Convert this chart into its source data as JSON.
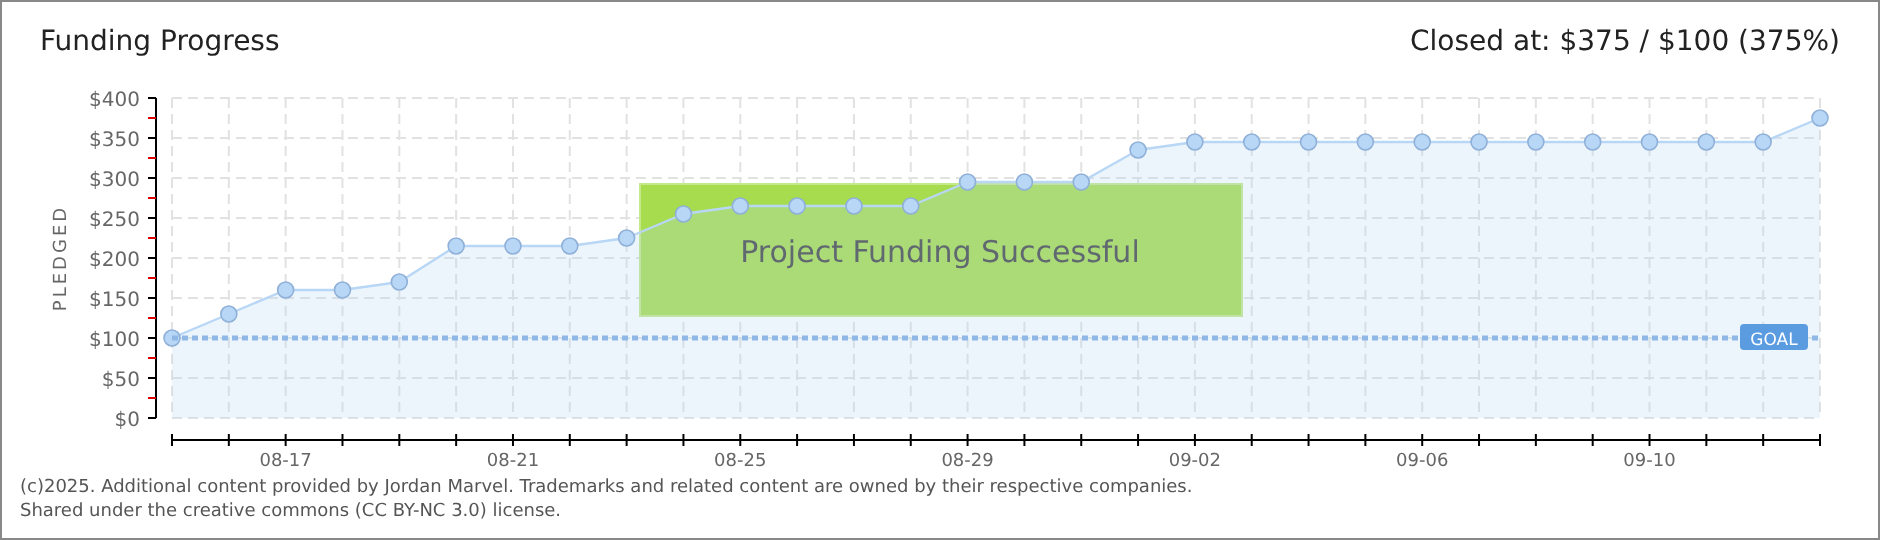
{
  "chart_data": {
    "type": "area",
    "title": "Funding Progress",
    "subtitle": "Closed at: $375 / $100 (375%)",
    "ylabel": "PLEDGED",
    "x": [
      "--08-15",
      "--08-16",
      "--08-17",
      "--08-18",
      "--08-19",
      "--08-20",
      "--08-21",
      "--08-22",
      "--08-23",
      "--08-24",
      "--08-25",
      "--08-26",
      "--08-27",
      "--08-28",
      "--08-29",
      "--08-30",
      "--08-31",
      "--09-01",
      "--09-02",
      "--09-03",
      "--09-04",
      "--09-05",
      "--09-06",
      "--09-07",
      "--09-08",
      "--09-09",
      "--09-10",
      "--09-11",
      "--09-12",
      "--09-13"
    ],
    "series": [
      {
        "color": "#b8d6f5",
        "values": [
          100,
          130,
          160,
          160,
          170,
          215,
          215,
          215,
          225,
          255,
          265,
          265,
          265,
          265,
          295,
          295,
          295,
          335,
          345,
          345,
          345,
          345,
          345,
          345,
          345,
          345,
          345,
          345,
          345,
          375
        ]
      }
    ],
    "xlim": [
      "--08-15",
      "--09-13"
    ],
    "xticks": [
      {
        "value": "--08-15",
        "label": null
      },
      {
        "value": "--08-16",
        "label": null
      },
      {
        "value": "--08-17",
        "label": "08-17"
      },
      {
        "value": "--08-18",
        "label": null
      },
      {
        "value": "--08-19",
        "label": null
      },
      {
        "value": "--08-20",
        "label": null
      },
      {
        "value": "--08-21",
        "label": "08-21"
      },
      {
        "value": "--08-22",
        "label": null
      },
      {
        "value": "--08-23",
        "label": null
      },
      {
        "value": "--08-24",
        "label": null
      },
      {
        "value": "--08-25",
        "label": "08-25"
      },
      {
        "value": "--08-26",
        "label": null
      },
      {
        "value": "--08-27",
        "label": null
      },
      {
        "value": "--08-28",
        "label": null
      },
      {
        "value": "--08-29",
        "label": "08-29"
      },
      {
        "value": "--08-30",
        "label": null
      },
      {
        "value": "--08-31",
        "label": null
      },
      {
        "value": "--09-01",
        "label": null
      },
      {
        "value": "--09-02",
        "label": "09-02"
      },
      {
        "value": "--09-03",
        "label": null
      },
      {
        "value": "--09-04",
        "label": null
      },
      {
        "value": "--09-05",
        "label": null
      },
      {
        "value": "--09-06",
        "label": "09-06"
      },
      {
        "value": "--09-07",
        "label": null
      },
      {
        "value": "--09-08",
        "label": null
      },
      {
        "value": "--09-09",
        "label": null
      },
      {
        "value": "--09-10",
        "label": "09-10"
      },
      {
        "value": "--09-11",
        "label": null
      },
      {
        "value": "--09-12",
        "label": null
      },
      {
        "value": "--09-13",
        "label": null
      }
    ],
    "ylim": [
      0,
      400
    ],
    "yticks": [
      {
        "value": 0,
        "label": "$0"
      },
      {
        "value": 25,
        "label": null
      },
      {
        "value": 50,
        "label": "$50"
      },
      {
        "value": 75,
        "label": null
      },
      {
        "value": 100,
        "label": "$100"
      },
      {
        "value": 125,
        "label": null
      },
      {
        "value": 150,
        "label": "$150"
      },
      {
        "value": 175,
        "label": null
      },
      {
        "value": 200,
        "label": "$200"
      },
      {
        "value": 225,
        "label": null
      },
      {
        "value": 250,
        "label": "$250"
      },
      {
        "value": 275,
        "label": null
      },
      {
        "value": 300,
        "label": "$300"
      },
      {
        "value": 325,
        "label": null
      },
      {
        "value": 350,
        "label": "$350"
      },
      {
        "value": 375,
        "label": null
      },
      {
        "value": 400,
        "label": "$400"
      }
    ],
    "grid": true,
    "marker": "circle",
    "ref_lines": [
      {
        "axis": "y",
        "value": 100,
        "label": "GOAL",
        "color": "#8fb8e6",
        "line_style": "dotted"
      }
    ],
    "annotations": [
      "Project Funding Successful",
      "(c)2025. Additional content provided by Jordan Marvel. Trademarks and related content are owned by their respective companies.",
      "Shared under the creative commons (CC BY-NC 3.0) license."
    ]
  }
}
